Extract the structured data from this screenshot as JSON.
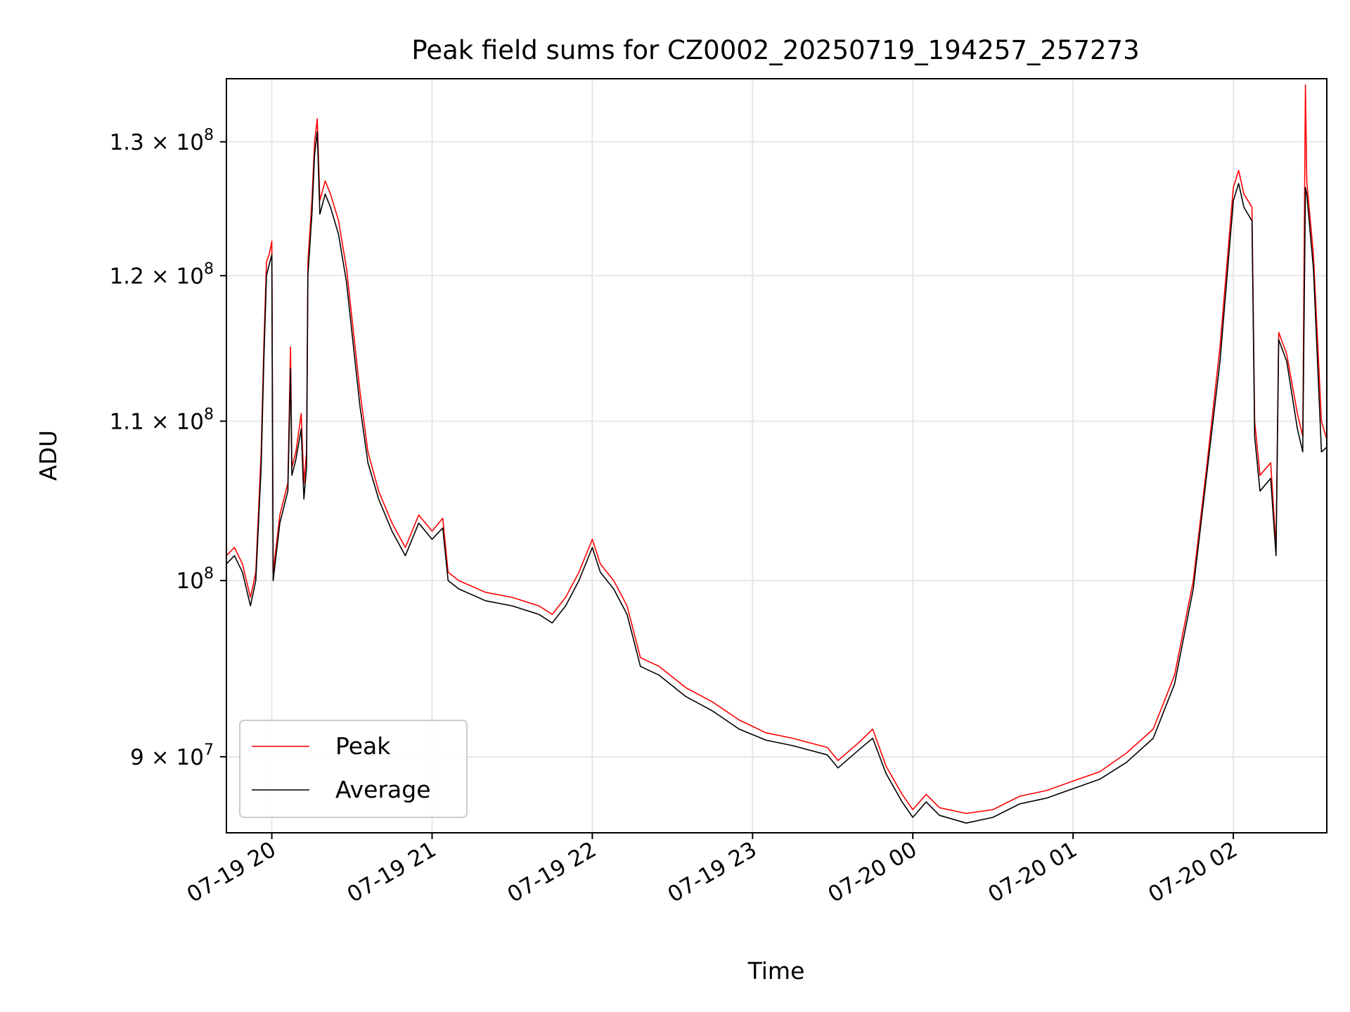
{
  "chart_data": {
    "type": "line",
    "title": "Peak field sums for CZ0002_20250719_194257_257273",
    "xlabel": "Time",
    "ylabel": "ADU",
    "x_scale": "time",
    "y_scale": "log",
    "xlim": [
      "2025-07-19T19:43:00",
      "2025-07-20T02:35:00"
    ],
    "ylim": [
      86000000,
      135000000
    ],
    "grid": true,
    "legend_position": "lower left",
    "x_ticks": [
      {
        "t": "2025-07-19T20:00:00",
        "label": "07-19 20"
      },
      {
        "t": "2025-07-19T21:00:00",
        "label": "07-19 21"
      },
      {
        "t": "2025-07-19T22:00:00",
        "label": "07-19 22"
      },
      {
        "t": "2025-07-19T23:00:00",
        "label": "07-19 23"
      },
      {
        "t": "2025-07-20T00:00:00",
        "label": "07-20 00"
      },
      {
        "t": "2025-07-20T01:00:00",
        "label": "07-20 01"
      },
      {
        "t": "2025-07-20T02:00:00",
        "label": "07-20 02"
      }
    ],
    "y_ticks": [
      {
        "value": 90000000,
        "mant": "9",
        "exp": "7"
      },
      {
        "value": 100000000,
        "mant": "",
        "exp": "8"
      },
      {
        "value": 110000000,
        "mant": "1.1",
        "exp": "8"
      },
      {
        "value": 120000000,
        "mant": "1.2",
        "exp": "8"
      },
      {
        "value": 130000000,
        "mant": "1.3",
        "exp": "8"
      }
    ],
    "series": [
      {
        "name": "Peak",
        "color": "#ff0000",
        "points": [
          [
            "2025-07-19T19:43:00",
            101500000
          ],
          [
            "2025-07-19T19:46:00",
            102000000
          ],
          [
            "2025-07-19T19:49:00",
            101000000
          ],
          [
            "2025-07-19T19:52:00",
            99000000
          ],
          [
            "2025-07-19T19:54:00",
            100500000
          ],
          [
            "2025-07-19T19:56:00",
            108000000
          ],
          [
            "2025-07-19T19:57:00",
            115000000
          ],
          [
            "2025-07-19T19:58:00",
            121000000
          ],
          [
            "2025-07-19T19:59:00",
            121500000
          ],
          [
            "2025-07-19T20:00:00",
            122500000
          ],
          [
            "2025-07-19T20:00:30",
            100500000
          ],
          [
            "2025-07-19T20:03:00",
            104000000
          ],
          [
            "2025-07-19T20:06:00",
            106000000
          ],
          [
            "2025-07-19T20:07:00",
            115000000
          ],
          [
            "2025-07-19T20:07:30",
            107000000
          ],
          [
            "2025-07-19T20:09:00",
            108000000
          ],
          [
            "2025-07-19T20:11:00",
            110500000
          ],
          [
            "2025-07-19T20:12:00",
            106000000
          ],
          [
            "2025-07-19T20:13:00",
            108000000
          ],
          [
            "2025-07-19T20:13:30",
            121000000
          ],
          [
            "2025-07-19T20:15:00",
            125500000
          ],
          [
            "2025-07-19T20:16:00",
            130000000
          ],
          [
            "2025-07-19T20:17:00",
            131800000
          ],
          [
            "2025-07-19T20:18:00",
            125500000
          ],
          [
            "2025-07-19T20:20:00",
            127000000
          ],
          [
            "2025-07-19T20:22:00",
            126000000
          ],
          [
            "2025-07-19T20:25:00",
            124000000
          ],
          [
            "2025-07-19T20:28:00",
            120500000
          ],
          [
            "2025-07-19T20:30:00",
            117000000
          ],
          [
            "2025-07-19T20:33:00",
            112000000
          ],
          [
            "2025-07-19T20:36:00",
            108000000
          ],
          [
            "2025-07-19T20:40:00",
            105500000
          ],
          [
            "2025-07-19T20:45:00",
            103500000
          ],
          [
            "2025-07-19T20:50:00",
            102000000
          ],
          [
            "2025-07-19T20:55:00",
            104000000
          ],
          [
            "2025-07-19T21:00:00",
            103000000
          ],
          [
            "2025-07-19T21:04:00",
            103800000
          ],
          [
            "2025-07-19T21:06:00",
            100500000
          ],
          [
            "2025-07-19T21:10:00",
            100000000
          ],
          [
            "2025-07-19T21:20:00",
            99300000
          ],
          [
            "2025-07-19T21:30:00",
            99000000
          ],
          [
            "2025-07-19T21:40:00",
            98500000
          ],
          [
            "2025-07-19T21:45:00",
            98000000
          ],
          [
            "2025-07-19T21:50:00",
            99000000
          ],
          [
            "2025-07-19T21:55:00",
            100500000
          ],
          [
            "2025-07-19T22:00:00",
            102500000
          ],
          [
            "2025-07-19T22:03:00",
            101000000
          ],
          [
            "2025-07-19T22:08:00",
            100000000
          ],
          [
            "2025-07-19T22:13:00",
            98500000
          ],
          [
            "2025-07-19T22:18:00",
            95500000
          ],
          [
            "2025-07-19T22:25:00",
            95000000
          ],
          [
            "2025-07-19T22:35:00",
            93800000
          ],
          [
            "2025-07-19T22:45:00",
            93000000
          ],
          [
            "2025-07-19T22:55:00",
            92000000
          ],
          [
            "2025-07-19T23:05:00",
            91300000
          ],
          [
            "2025-07-19T23:15:00",
            91000000
          ],
          [
            "2025-07-19T23:28:00",
            90500000
          ],
          [
            "2025-07-19T23:32:00",
            89800000
          ],
          [
            "2025-07-19T23:40:00",
            90800000
          ],
          [
            "2025-07-19T23:45:00",
            91500000
          ],
          [
            "2025-07-19T23:50:00",
            89500000
          ],
          [
            "2025-07-19T23:56:00",
            88000000
          ],
          [
            "2025-07-20T00:00:00",
            87200000
          ],
          [
            "2025-07-20T00:05:00",
            88000000
          ],
          [
            "2025-07-20T00:10:00",
            87300000
          ],
          [
            "2025-07-20T00:20:00",
            87000000
          ],
          [
            "2025-07-20T00:30:00",
            87200000
          ],
          [
            "2025-07-20T00:40:00",
            87900000
          ],
          [
            "2025-07-20T00:50:00",
            88200000
          ],
          [
            "2025-07-20T01:00:00",
            88700000
          ],
          [
            "2025-07-20T01:10:00",
            89200000
          ],
          [
            "2025-07-20T01:20:00",
            90200000
          ],
          [
            "2025-07-20T01:30:00",
            91500000
          ],
          [
            "2025-07-20T01:38:00",
            94500000
          ],
          [
            "2025-07-20T01:45:00",
            100000000
          ],
          [
            "2025-07-20T01:50:00",
            107000000
          ],
          [
            "2025-07-20T01:55:00",
            115000000
          ],
          [
            "2025-07-20T02:00:00",
            126500000
          ],
          [
            "2025-07-20T02:02:00",
            127800000
          ],
          [
            "2025-07-20T02:04:00",
            126000000
          ],
          [
            "2025-07-20T02:07:00",
            125000000
          ],
          [
            "2025-07-20T02:08:00",
            110000000
          ],
          [
            "2025-07-20T02:10:00",
            106500000
          ],
          [
            "2025-07-20T02:14:00",
            107300000
          ],
          [
            "2025-07-20T02:16:00",
            102000000
          ],
          [
            "2025-07-20T02:17:00",
            116000000
          ],
          [
            "2025-07-20T02:20:00",
            114500000
          ],
          [
            "2025-07-20T02:24:00",
            110500000
          ],
          [
            "2025-07-20T02:26:00",
            109000000
          ],
          [
            "2025-07-20T02:27:00",
            134500000
          ],
          [
            "2025-07-20T02:27:30",
            127000000
          ],
          [
            "2025-07-20T02:30:00",
            121500000
          ],
          [
            "2025-07-20T02:33:00",
            110000000
          ],
          [
            "2025-07-20T02:35:00",
            108800000
          ]
        ]
      },
      {
        "name": "Average",
        "color": "#000000",
        "points": [
          [
            "2025-07-19T19:43:00",
            101000000
          ],
          [
            "2025-07-19T19:46:00",
            101500000
          ],
          [
            "2025-07-19T19:49:00",
            100500000
          ],
          [
            "2025-07-19T19:52:00",
            98500000
          ],
          [
            "2025-07-19T19:54:00",
            100000000
          ],
          [
            "2025-07-19T19:56:00",
            107000000
          ],
          [
            "2025-07-19T19:57:00",
            114000000
          ],
          [
            "2025-07-19T19:58:00",
            120000000
          ],
          [
            "2025-07-19T19:59:00",
            120800000
          ],
          [
            "2025-07-19T20:00:00",
            121500000
          ],
          [
            "2025-07-19T20:00:30",
            100000000
          ],
          [
            "2025-07-19T20:03:00",
            103500000
          ],
          [
            "2025-07-19T20:06:00",
            105500000
          ],
          [
            "2025-07-19T20:07:00",
            113500000
          ],
          [
            "2025-07-19T20:07:30",
            106500000
          ],
          [
            "2025-07-19T20:09:00",
            107500000
          ],
          [
            "2025-07-19T20:11:00",
            109500000
          ],
          [
            "2025-07-19T20:12:00",
            105000000
          ],
          [
            "2025-07-19T20:13:00",
            107000000
          ],
          [
            "2025-07-19T20:13:30",
            120000000
          ],
          [
            "2025-07-19T20:15:00",
            124500000
          ],
          [
            "2025-07-19T20:16:00",
            129000000
          ],
          [
            "2025-07-19T20:17:00",
            130800000
          ],
          [
            "2025-07-19T20:18:00",
            124500000
          ],
          [
            "2025-07-19T20:20:00",
            126000000
          ],
          [
            "2025-07-19T20:22:00",
            125000000
          ],
          [
            "2025-07-19T20:25:00",
            123000000
          ],
          [
            "2025-07-19T20:28:00",
            119500000
          ],
          [
            "2025-07-19T20:30:00",
            116000000
          ],
          [
            "2025-07-19T20:33:00",
            111000000
          ],
          [
            "2025-07-19T20:36:00",
            107300000
          ],
          [
            "2025-07-19T20:40:00",
            105000000
          ],
          [
            "2025-07-19T20:45:00",
            103000000
          ],
          [
            "2025-07-19T20:50:00",
            101500000
          ],
          [
            "2025-07-19T20:55:00",
            103500000
          ],
          [
            "2025-07-19T21:00:00",
            102500000
          ],
          [
            "2025-07-19T21:04:00",
            103200000
          ],
          [
            "2025-07-19T21:06:00",
            100000000
          ],
          [
            "2025-07-19T21:10:00",
            99500000
          ],
          [
            "2025-07-19T21:20:00",
            98800000
          ],
          [
            "2025-07-19T21:30:00",
            98500000
          ],
          [
            "2025-07-19T21:40:00",
            98000000
          ],
          [
            "2025-07-19T21:45:00",
            97500000
          ],
          [
            "2025-07-19T21:50:00",
            98500000
          ],
          [
            "2025-07-19T21:55:00",
            100000000
          ],
          [
            "2025-07-19T22:00:00",
            102000000
          ],
          [
            "2025-07-19T22:03:00",
            100500000
          ],
          [
            "2025-07-19T22:08:00",
            99500000
          ],
          [
            "2025-07-19T22:13:00",
            98000000
          ],
          [
            "2025-07-19T22:18:00",
            95000000
          ],
          [
            "2025-07-19T22:25:00",
            94500000
          ],
          [
            "2025-07-19T22:35:00",
            93300000
          ],
          [
            "2025-07-19T22:45:00",
            92500000
          ],
          [
            "2025-07-19T22:55:00",
            91500000
          ],
          [
            "2025-07-19T23:05:00",
            90900000
          ],
          [
            "2025-07-19T23:15:00",
            90600000
          ],
          [
            "2025-07-19T23:28:00",
            90100000
          ],
          [
            "2025-07-19T23:32:00",
            89400000
          ],
          [
            "2025-07-19T23:40:00",
            90400000
          ],
          [
            "2025-07-19T23:45:00",
            91000000
          ],
          [
            "2025-07-19T23:50:00",
            89100000
          ],
          [
            "2025-07-19T23:56:00",
            87600000
          ],
          [
            "2025-07-20T00:00:00",
            86800000
          ],
          [
            "2025-07-20T00:05:00",
            87600000
          ],
          [
            "2025-07-20T00:10:00",
            86900000
          ],
          [
            "2025-07-20T00:20:00",
            86500000
          ],
          [
            "2025-07-20T00:30:00",
            86800000
          ],
          [
            "2025-07-20T00:40:00",
            87500000
          ],
          [
            "2025-07-20T00:50:00",
            87800000
          ],
          [
            "2025-07-20T01:00:00",
            88300000
          ],
          [
            "2025-07-20T01:10:00",
            88800000
          ],
          [
            "2025-07-20T01:20:00",
            89700000
          ],
          [
            "2025-07-20T01:30:00",
            91000000
          ],
          [
            "2025-07-20T01:38:00",
            94000000
          ],
          [
            "2025-07-20T01:45:00",
            99500000
          ],
          [
            "2025-07-20T01:50:00",
            106500000
          ],
          [
            "2025-07-20T01:55:00",
            114000000
          ],
          [
            "2025-07-20T02:00:00",
            125500000
          ],
          [
            "2025-07-20T02:02:00",
            126800000
          ],
          [
            "2025-07-20T02:04:00",
            125000000
          ],
          [
            "2025-07-20T02:07:00",
            124000000
          ],
          [
            "2025-07-20T02:08:00",
            109000000
          ],
          [
            "2025-07-20T02:10:00",
            105500000
          ],
          [
            "2025-07-20T02:14:00",
            106300000
          ],
          [
            "2025-07-20T02:16:00",
            101500000
          ],
          [
            "2025-07-20T02:17:00",
            115500000
          ],
          [
            "2025-07-20T02:20:00",
            114000000
          ],
          [
            "2025-07-20T02:24:00",
            109500000
          ],
          [
            "2025-07-20T02:26:00",
            108000000
          ],
          [
            "2025-07-20T02:27:00",
            126500000
          ],
          [
            "2025-07-20T02:27:30",
            126000000
          ],
          [
            "2025-07-20T02:30:00",
            120500000
          ],
          [
            "2025-07-20T02:33:00",
            108000000
          ],
          [
            "2025-07-20T02:35:00",
            108300000
          ]
        ]
      }
    ]
  }
}
